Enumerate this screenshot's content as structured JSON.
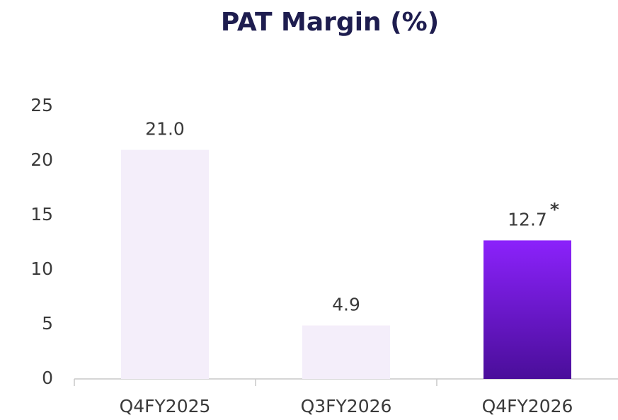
{
  "chart_data": {
    "type": "bar",
    "title": "PAT Margin (%)",
    "categories": [
      "Q4FY2025",
      "Q3FY2026",
      "Q4FY2026"
    ],
    "values": [
      21.0,
      4.9,
      12.7
    ],
    "value_labels": [
      "21.0",
      "4.9",
      "12.7"
    ],
    "annotation": "*",
    "colors": [
      "#f4eefa",
      "#f4eefa",
      [
        "#8b22fb",
        "#4a0e9a"
      ]
    ],
    "ylim": [
      0,
      25
    ],
    "yticks": [
      0,
      5,
      10,
      15,
      20,
      25
    ],
    "grid": false
  }
}
